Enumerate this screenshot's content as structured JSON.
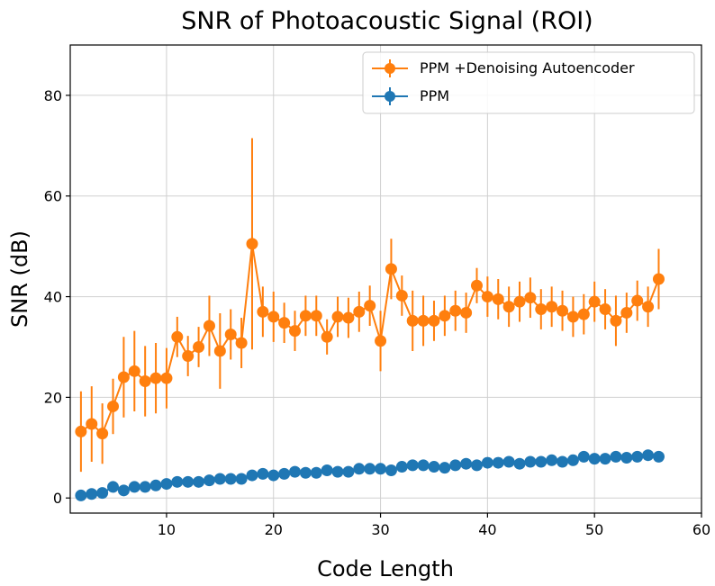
{
  "chart_data": {
    "type": "scatter",
    "title": "SNR of Photoacoustic Signal (ROI)",
    "xlabel": "Code Length",
    "ylabel": "SNR (dB)",
    "xlim": [
      1,
      60
    ],
    "ylim": [
      -3,
      90
    ],
    "xticks": [
      10,
      20,
      30,
      40,
      50,
      60
    ],
    "yticks": [
      0,
      20,
      40,
      60,
      80
    ],
    "grid": true,
    "legend_position": "top-right",
    "series": [
      {
        "name": "PPM +Denoising Autoencoder",
        "color": "#ff7f0e",
        "x": [
          2,
          3,
          4,
          5,
          6,
          7,
          8,
          9,
          10,
          11,
          12,
          13,
          14,
          15,
          16,
          17,
          18,
          19,
          20,
          21,
          22,
          23,
          24,
          25,
          26,
          27,
          28,
          29,
          30,
          31,
          32,
          33,
          34,
          35,
          36,
          37,
          38,
          39,
          40,
          41,
          42,
          43,
          44,
          45,
          46,
          47,
          48,
          49,
          50,
          51,
          52,
          53,
          54,
          55,
          56
        ],
        "y": [
          13.2,
          14.7,
          12.8,
          18.2,
          24.0,
          25.2,
          23.2,
          23.8,
          23.8,
          32.0,
          28.2,
          30.0,
          34.2,
          29.2,
          32.5,
          30.8,
          50.5,
          37.0,
          36.0,
          34.8,
          33.2,
          36.2,
          36.2,
          32.0,
          36.0,
          35.8,
          37.0,
          38.2,
          31.2,
          45.5,
          40.2,
          35.2,
          35.2,
          35.2,
          36.2,
          37.2,
          36.8,
          42.2,
          40.0,
          39.5,
          38.0,
          39.0,
          39.8,
          37.5,
          38.0,
          37.2,
          36.0,
          36.5,
          39.0,
          37.5,
          35.2,
          36.8,
          39.2,
          38.0,
          43.5
        ],
        "err": [
          8,
          7.5,
          6,
          5.5,
          8,
          8,
          7,
          7,
          6,
          4,
          4,
          4,
          6,
          7.5,
          5,
          5,
          21,
          5,
          5,
          4,
          4,
          4,
          4,
          3.5,
          4,
          4,
          4,
          4,
          6,
          6,
          4,
          6,
          5,
          4,
          4,
          4,
          4,
          3.5,
          4,
          4,
          4,
          4,
          4,
          4,
          4,
          4,
          4,
          4,
          4,
          4,
          5,
          4,
          4,
          4,
          6
        ]
      },
      {
        "name": "PPM",
        "color": "#1f77b4",
        "x": [
          2,
          3,
          4,
          5,
          6,
          7,
          8,
          9,
          10,
          11,
          12,
          13,
          14,
          15,
          16,
          17,
          18,
          19,
          20,
          21,
          22,
          23,
          24,
          25,
          26,
          27,
          28,
          29,
          30,
          31,
          32,
          33,
          34,
          35,
          36,
          37,
          38,
          39,
          40,
          41,
          42,
          43,
          44,
          45,
          46,
          47,
          48,
          49,
          50,
          51,
          52,
          53,
          54,
          55,
          56
        ],
        "y": [
          0.5,
          0.8,
          1.0,
          2.2,
          1.5,
          2.2,
          2.2,
          2.5,
          2.8,
          3.2,
          3.2,
          3.2,
          3.5,
          3.8,
          3.8,
          3.8,
          4.5,
          4.8,
          4.5,
          4.8,
          5.2,
          5.0,
          5.0,
          5.5,
          5.2,
          5.2,
          5.8,
          5.8,
          5.8,
          5.5,
          6.2,
          6.5,
          6.5,
          6.2,
          6.0,
          6.5,
          6.8,
          6.5,
          7.0,
          7.0,
          7.2,
          6.8,
          7.2,
          7.2,
          7.5,
          7.2,
          7.5,
          8.2,
          7.8,
          7.8,
          8.2,
          8.0,
          8.2,
          8.5,
          8.2
        ],
        "err": [
          0.4,
          0.4,
          0.4,
          0.5,
          0.4,
          0.4,
          0.4,
          0.4,
          0.4,
          0.4,
          0.4,
          0.4,
          0.4,
          0.4,
          0.4,
          0.4,
          0.4,
          0.4,
          0.4,
          0.4,
          0.4,
          0.4,
          0.4,
          0.4,
          0.4,
          0.4,
          0.4,
          0.4,
          0.4,
          0.4,
          0.4,
          0.4,
          0.4,
          0.4,
          0.4,
          0.4,
          0.4,
          0.4,
          0.4,
          0.4,
          0.4,
          0.4,
          0.4,
          0.4,
          0.4,
          0.4,
          0.4,
          0.4,
          0.4,
          0.4,
          0.4,
          0.4,
          0.4,
          0.4,
          0.4
        ]
      }
    ]
  }
}
